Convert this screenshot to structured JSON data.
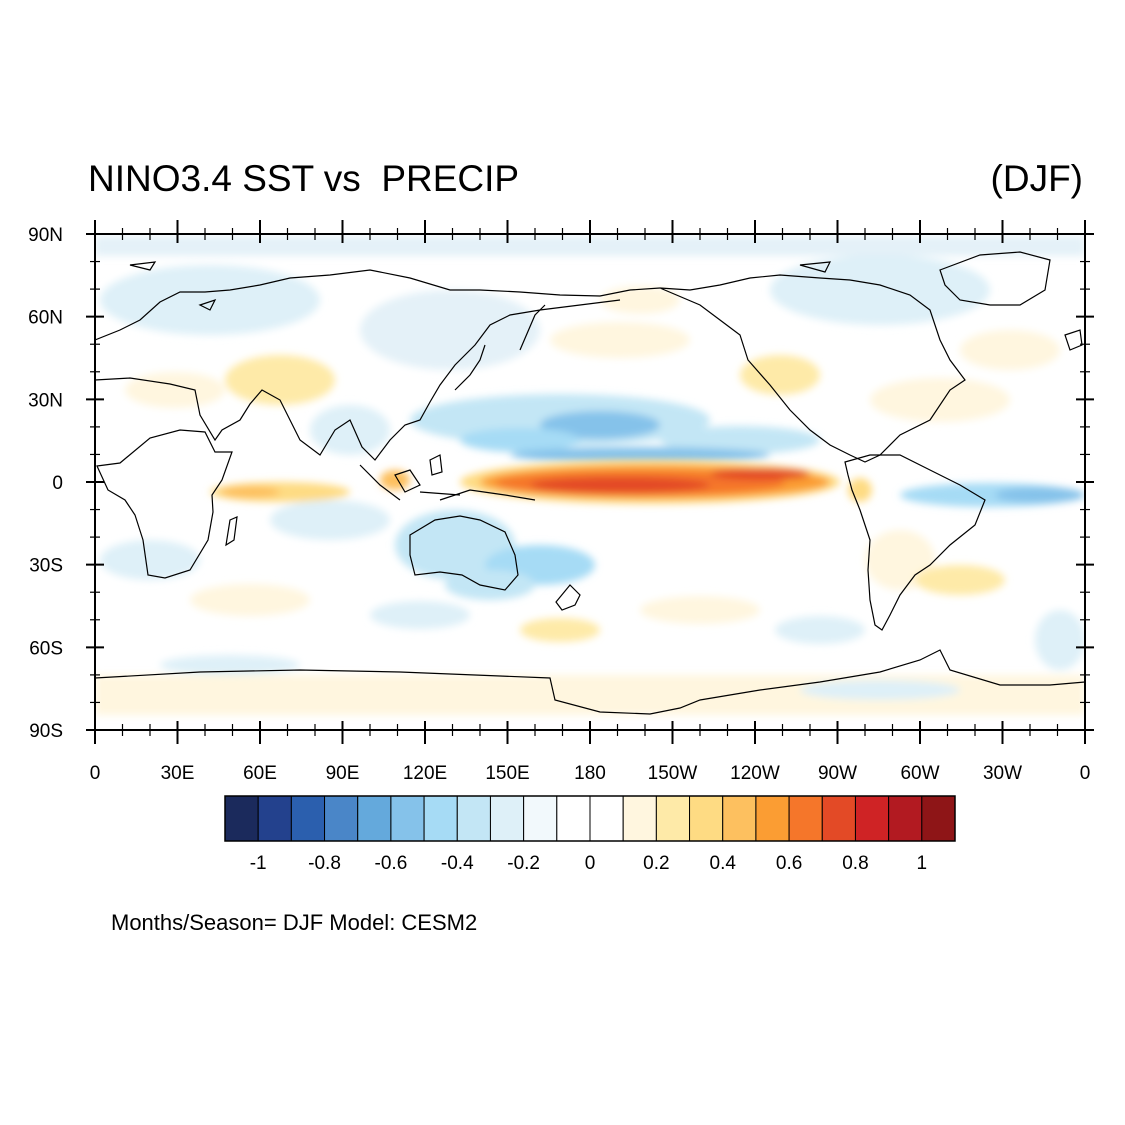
{
  "title": "NINO3.4 SST vs  PRECIP",
  "season_label": "(DJF)",
  "footer": "Months/Season= DJF Model: CESM2",
  "lat_ticks": [
    "90N",
    "60N",
    "30N",
    "0",
    "30S",
    "60S",
    "90S"
  ],
  "lon_ticks": [
    "0",
    "30E",
    "60E",
    "90E",
    "120E",
    "150E",
    "180",
    "150W",
    "120W",
    "90W",
    "60W",
    "30W",
    "0"
  ],
  "colorbar": {
    "colors": [
      "#1b2a5c",
      "#23418d",
      "#2b5fae",
      "#4a86c8",
      "#64a9dc",
      "#85c2ea",
      "#a6dbf5",
      "#c3e6f5",
      "#def0f8",
      "#f2f9fc",
      "#ffffff",
      "#ffffff",
      "#fff6df",
      "#feeaa8",
      "#fedb83",
      "#fdc05f",
      "#fb9d33",
      "#f5762a",
      "#e34a26",
      "#cf2325",
      "#b21a21",
      "#8e1517"
    ],
    "labels": [
      "-1",
      "-0.8",
      "-0.6",
      "-0.4",
      "-0.2",
      "0",
      "0.2",
      "0.4",
      "0.6",
      "0.8",
      "1"
    ]
  }
}
